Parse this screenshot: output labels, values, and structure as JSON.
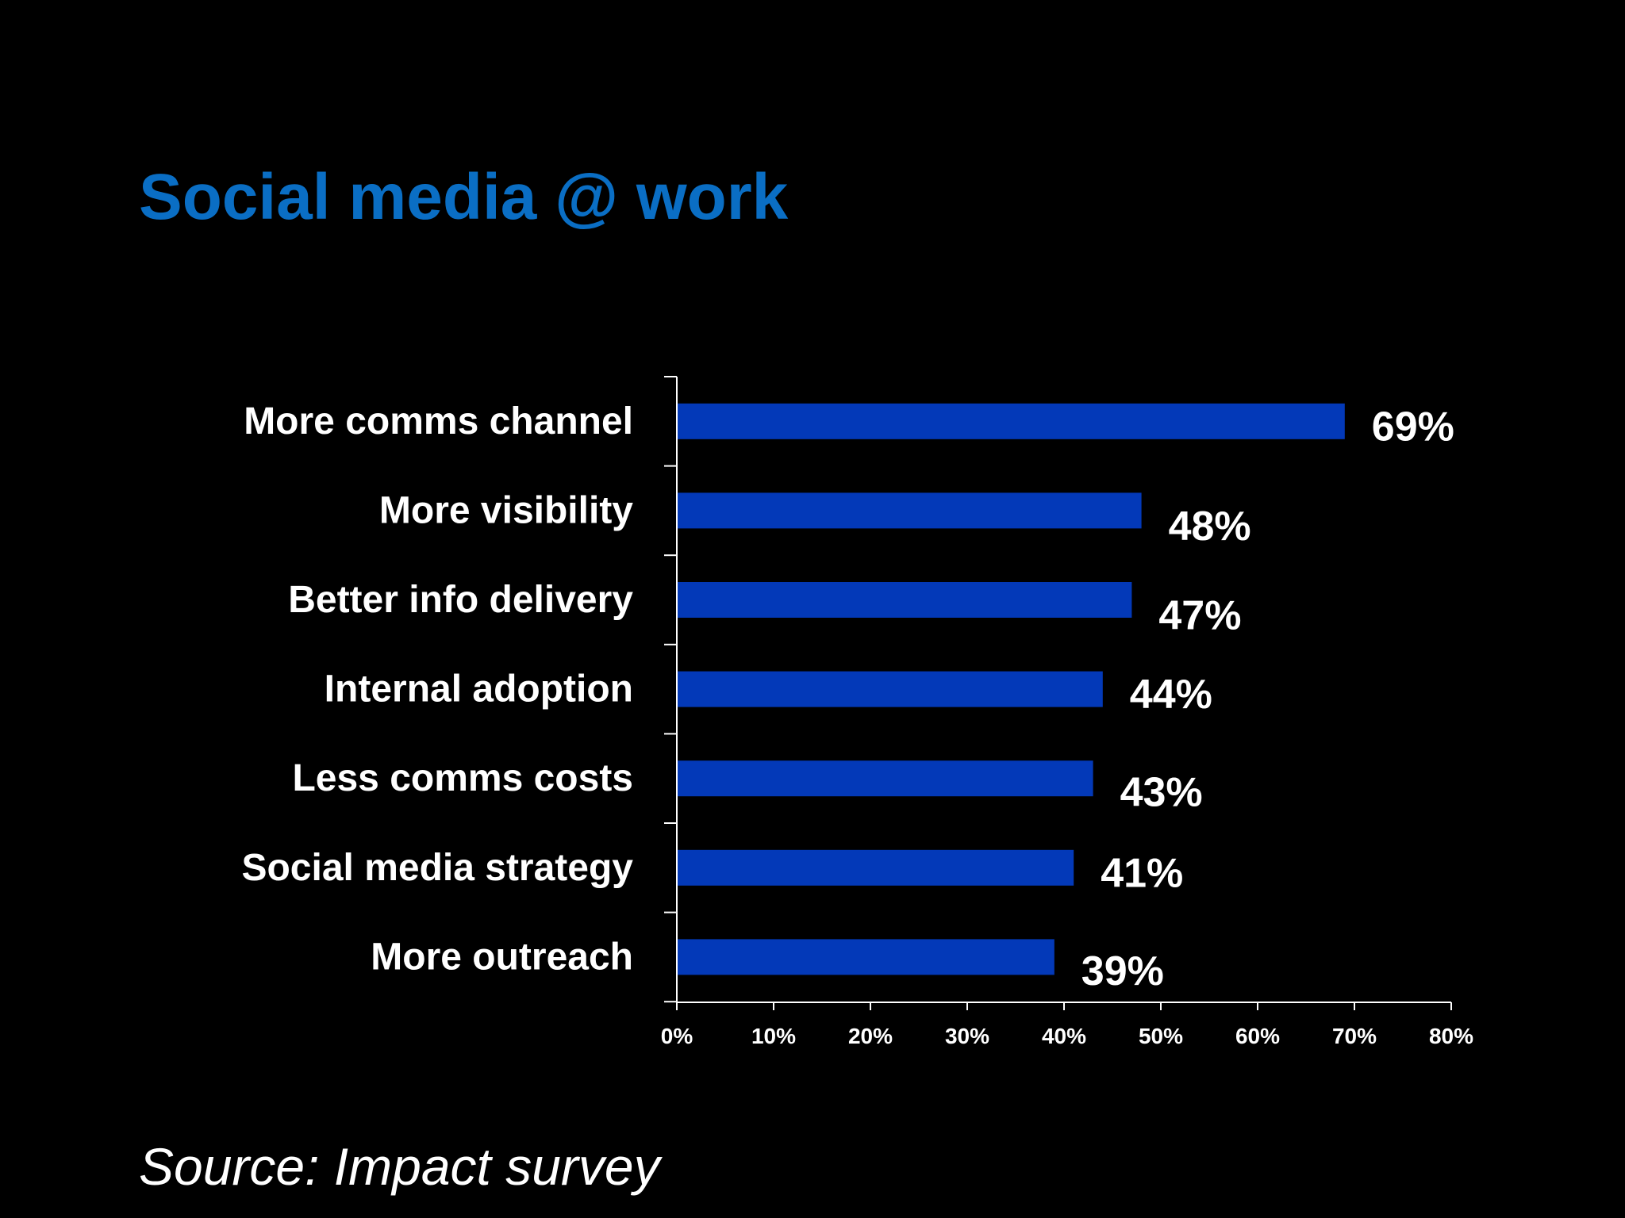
{
  "slide": {
    "title": "Social media @ work",
    "source": "Source: Impact survey"
  },
  "colors": {
    "background": "#000000",
    "title": "#0a6ec4",
    "bar": "#0339b8",
    "text": "#ffffff",
    "axis": "#ffffff"
  },
  "chart_data": {
    "type": "bar",
    "orientation": "horizontal",
    "title": "",
    "xlabel": "",
    "ylabel": "",
    "categories": [
      "More comms channel",
      "More visibility",
      "Better info delivery",
      "Internal adoption",
      "Less comms costs",
      "Social media strategy",
      "More outreach"
    ],
    "values": [
      69,
      48,
      47,
      44,
      43,
      41,
      39
    ],
    "value_labels": [
      "69%",
      "48%",
      "47%",
      "44%",
      "43%",
      "41%",
      "39%"
    ],
    "xlim": [
      0,
      80
    ],
    "x_ticks": [
      0,
      10,
      20,
      30,
      40,
      50,
      60,
      70,
      80
    ],
    "x_tick_labels": [
      "0%",
      "10%",
      "20%",
      "30%",
      "40%",
      "50%",
      "60%",
      "70%",
      "80%"
    ],
    "grid": false,
    "legend": "none"
  }
}
